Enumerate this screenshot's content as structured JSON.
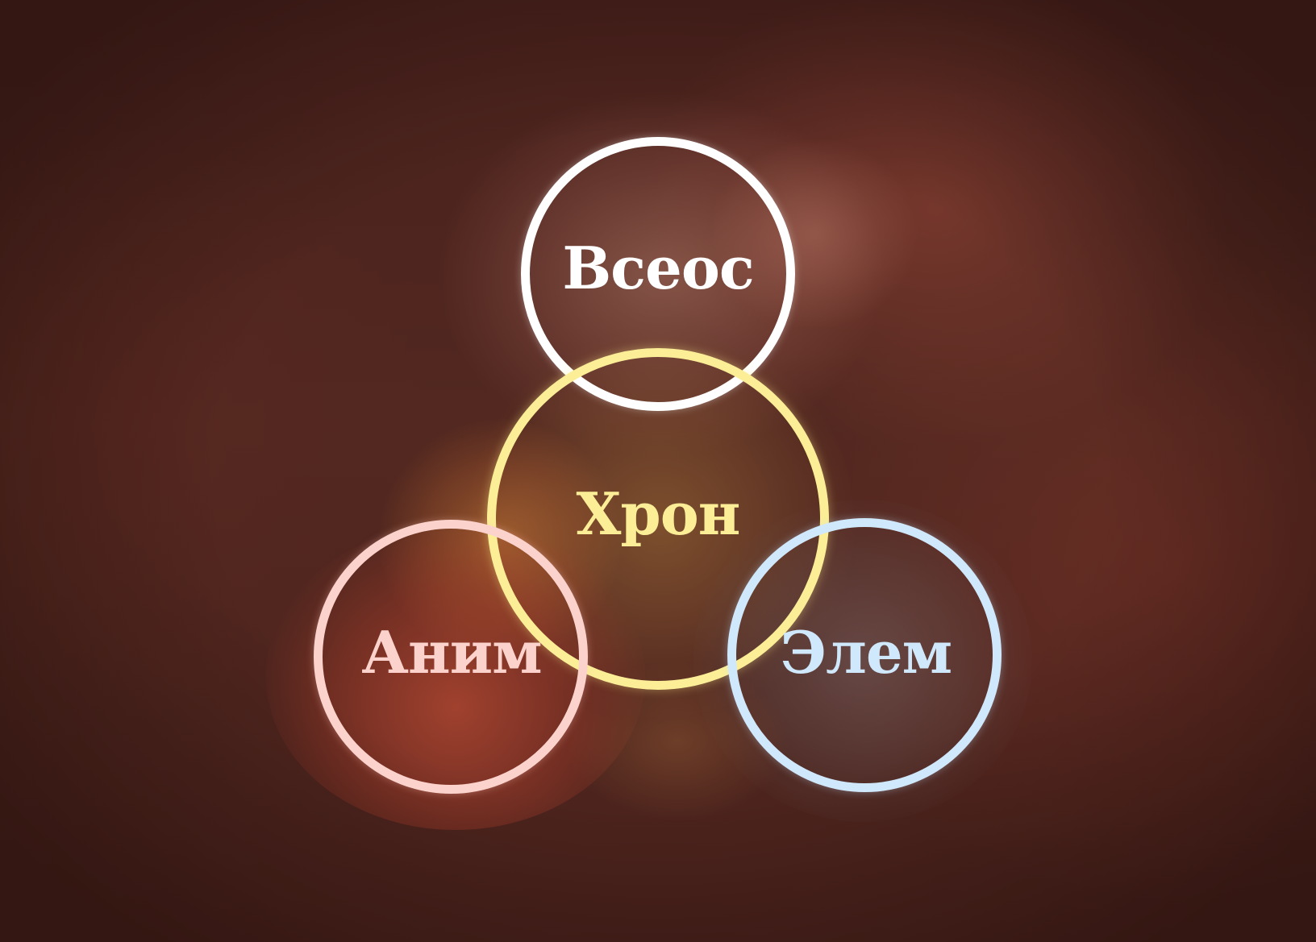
{
  "diagram": {
    "circles": {
      "top": {
        "label": "Всеос",
        "color": "#ffffff"
      },
      "center": {
        "label": "Хрон",
        "color": "#fbee96"
      },
      "left": {
        "label": "Аним",
        "color": "#fbd3cc"
      },
      "right": {
        "label": "Элем",
        "color": "#cfe8fb"
      }
    }
  }
}
